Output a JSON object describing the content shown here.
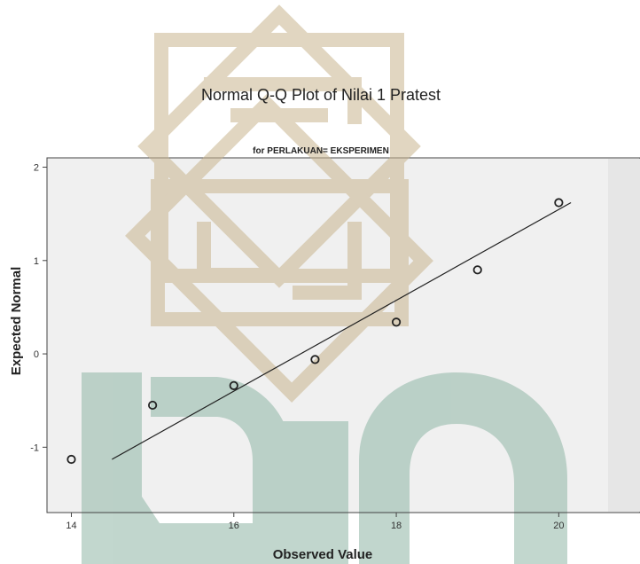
{
  "chart_data": {
    "type": "scatter",
    "title": "Normal Q-Q Plot of Nilai 1 Pratest",
    "subtitle": "for PERLAKUAN= EKSPERIMEN",
    "xlabel": "Observed Value",
    "ylabel": "Expected Normal",
    "xlim": [
      13.7,
      21.0
    ],
    "ylim": [
      -1.7,
      2.1
    ],
    "x_ticks": [
      14,
      16,
      18,
      20
    ],
    "y_ticks": [
      -1,
      0,
      1,
      2
    ],
    "points": [
      {
        "x": 14,
        "y": -1.13
      },
      {
        "x": 15,
        "y": -0.55
      },
      {
        "x": 16,
        "y": -0.34
      },
      {
        "x": 17,
        "y": -0.06
      },
      {
        "x": 18,
        "y": 0.34
      },
      {
        "x": 19,
        "y": 0.9
      },
      {
        "x": 20,
        "y": 1.62
      }
    ],
    "reference_line": {
      "x": [
        14.5,
        20.15
      ],
      "y": [
        -1.13,
        1.62
      ]
    },
    "grid": false
  },
  "colors": {
    "plot_bg": "#f0f0f0",
    "outside_bg": "#ffffff",
    "watermark_gold": "#c9b58f",
    "watermark_green": "#8fb6a6",
    "marker": "#222222",
    "line": "#222222"
  }
}
